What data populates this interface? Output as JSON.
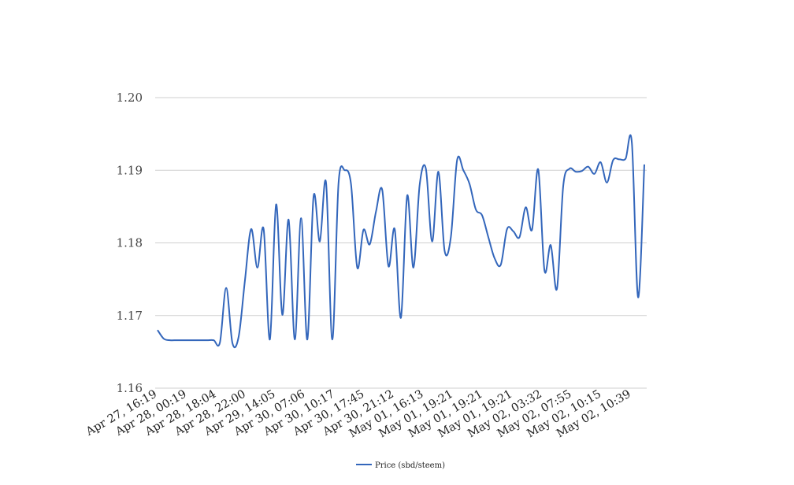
{
  "chart_data": {
    "type": "line",
    "title": "",
    "xlabel": "",
    "ylabel": "",
    "ylim": [
      1.16,
      1.2
    ],
    "y_ticks": [
      "1.16",
      "1.17",
      "1.18",
      "1.19",
      "1.20"
    ],
    "x_tick_labels": [
      "Apr 27, 16:19",
      "Apr 28, 00:19",
      "Apr 28, 18:04",
      "Apr 28, 22:00",
      "Apr 29, 14:05",
      "Apr 30, 07:06",
      "Apr 30, 10:17",
      "Apr 30, 17:45",
      "Apr 30, 21:12",
      "May 01, 16:13",
      "May 01, 19:21",
      "May 01, 19:21",
      "May 01, 19:21",
      "May 02, 03:32",
      "May 02, 07:55",
      "May 02, 10:15",
      "May 02, 10:39"
    ],
    "grid": true,
    "legend_position": "bottom",
    "series": [
      {
        "name": "Price (sbd/steem)",
        "color": "#3366bb",
        "values": [
          1.168,
          1.1668,
          1.1666,
          1.1666,
          1.1666,
          1.1666,
          1.1666,
          1.1666,
          1.1666,
          1.1666,
          1.1663,
          1.1738,
          1.1662,
          1.1671,
          1.1748,
          1.1819,
          1.1766,
          1.1819,
          1.1667,
          1.1853,
          1.1701,
          1.1832,
          1.1667,
          1.1834,
          1.1667,
          1.1864,
          1.1802,
          1.1883,
          1.1667,
          1.1882,
          1.19,
          1.1881,
          1.1766,
          1.1818,
          1.1798,
          1.1843,
          1.1873,
          1.1768,
          1.1819,
          1.1697,
          1.1865,
          1.1766,
          1.188,
          1.1902,
          1.1802,
          1.1898,
          1.1789,
          1.1808,
          1.1914,
          1.19,
          1.1881,
          1.1846,
          1.1838,
          1.1808,
          1.1779,
          1.177,
          1.1819,
          1.1816,
          1.1808,
          1.1849,
          1.1818,
          1.1901,
          1.1762,
          1.1797,
          1.1737,
          1.1878,
          1.1902,
          1.1898,
          1.1899,
          1.1905,
          1.1895,
          1.1911,
          1.1883,
          1.1914,
          1.1915,
          1.1916,
          1.1938,
          1.1725,
          1.1908
        ]
      }
    ]
  }
}
